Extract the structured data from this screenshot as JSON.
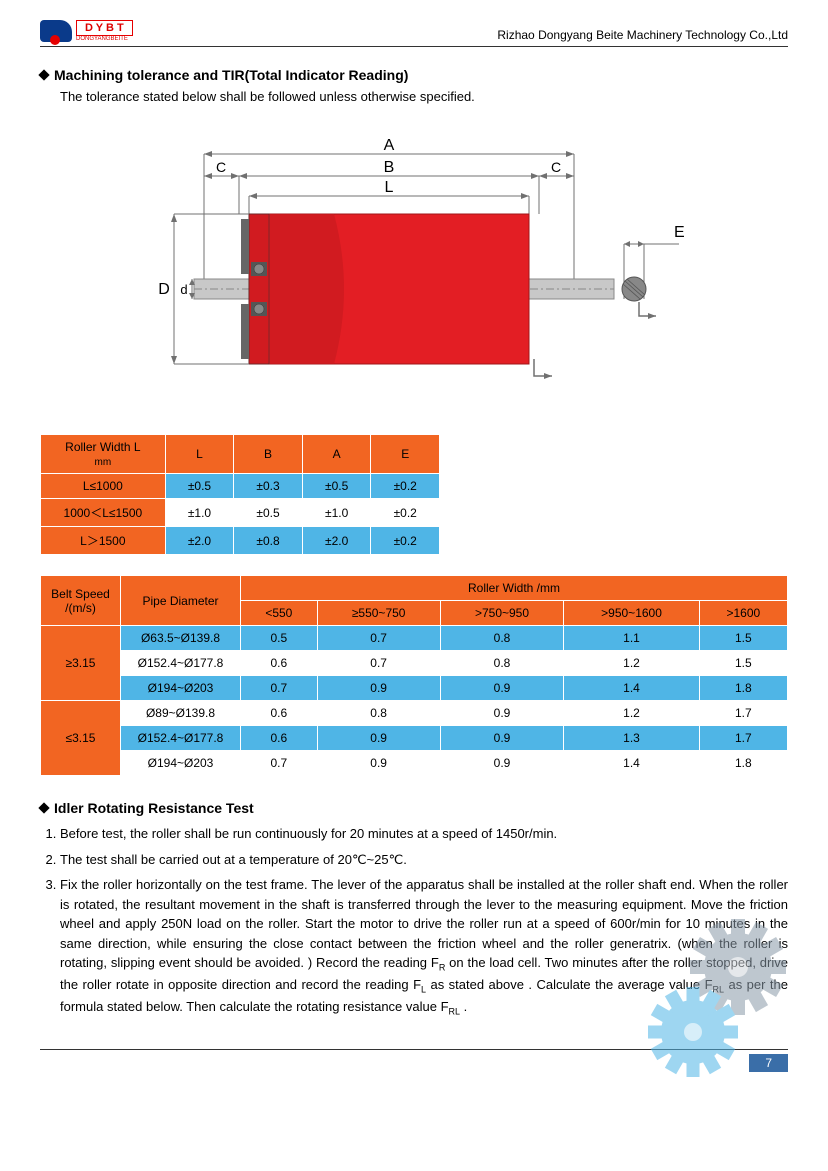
{
  "header": {
    "logo_text": "D Y B T",
    "logo_sub": "DONGYANGBEITE",
    "company": "Rizhao Dongyang Beite Machinery Technology Co.,Ltd"
  },
  "section1": {
    "title": "Machining tolerance and TIR(Total Indicator Reading)",
    "intro": "The tolerance stated below shall be followed unless otherwise specified."
  },
  "diagram": {
    "labels": {
      "A": "A",
      "B": "B",
      "C1": "C",
      "C2": "C",
      "L": "L",
      "D": "D",
      "d": "d",
      "E": "E"
    },
    "colors": {
      "roller": "#e31e24",
      "roller_dark": "#b0181c",
      "shaft": "#b8b8b8",
      "dim_line": "#707070",
      "hatch": "#888888"
    }
  },
  "table1": {
    "header": {
      "col0": "Roller Width    L",
      "unit": "mm",
      "cols": [
        "L",
        "B",
        "A",
        "E"
      ]
    },
    "rows": [
      {
        "label": "L≤1000",
        "vals": [
          "±0.5",
          "±0.3",
          "±0.5",
          "±0.2"
        ],
        "cls": "blue"
      },
      {
        "label": "1000＜L≤1500",
        "vals": [
          "±1.0",
          "±0.5",
          "±1.0",
          "±0.2"
        ],
        "cls": "white"
      },
      {
        "label": "L＞1500",
        "vals": [
          "±2.0",
          "±0.8",
          "±2.0",
          "±0.2"
        ],
        "cls": "blue"
      }
    ]
  },
  "table2": {
    "header": {
      "belt": "Belt Speed",
      "belt_unit": "/(m/s)",
      "pipe": "Pipe Diameter",
      "rw": "Roller Width /mm",
      "cols": [
        "<550",
        "≥550~750",
        ">750~950",
        ">950~1600",
        ">1600"
      ]
    },
    "groups": [
      {
        "belt": "≥3.15",
        "rows": [
          {
            "pipe": "Ø63.5~Ø139.8",
            "vals": [
              "0.5",
              "0.7",
              "0.8",
              "1.1",
              "1.5"
            ],
            "cls": "blue"
          },
          {
            "pipe": "Ø152.4~Ø177.8",
            "vals": [
              "0.6",
              "0.7",
              "0.8",
              "1.2",
              "1.5"
            ],
            "cls": "white"
          },
          {
            "pipe": "Ø194~Ø203",
            "vals": [
              "0.7",
              "0.9",
              "0.9",
              "1.4",
              "1.8"
            ],
            "cls": "blue"
          }
        ]
      },
      {
        "belt": "≤3.15",
        "rows": [
          {
            "pipe": "Ø89~Ø139.8",
            "vals": [
              "0.6",
              "0.8",
              "0.9",
              "1.2",
              "1.7"
            ],
            "cls": "white"
          },
          {
            "pipe": "Ø152.4~Ø177.8",
            "vals": [
              "0.6",
              "0.9",
              "0.9",
              "1.3",
              "1.7"
            ],
            "cls": "blue"
          },
          {
            "pipe": "Ø194~Ø203",
            "vals": [
              "0.7",
              "0.9",
              "0.9",
              "1.4",
              "1.8"
            ],
            "cls": "white"
          }
        ]
      }
    ]
  },
  "section2": {
    "title": "Idler Rotating Resistance Test",
    "items": [
      "Before test, the roller shall be run continuously for 20 minutes at a speed of 1450r/min.",
      "The test shall be carried out at a temperature of 20℃~25℃.",
      "Fix the roller horizontally on the test frame. The lever of the apparatus shall be installed at the roller shaft end. When the roller is rotated, the resultant movement in the shaft is transferred through the lever to the measuring equipment. Move the friction wheel and apply 250N load on the roller. Start the motor to drive the roller run at a speed of 600r/min for 10 minutes in the same direction, while ensuring the close contact between the friction wheel and the roller generatrix. (when the roller is rotating, slipping event should be avoided. ) Record the reading F<sub>R</sub> on the load cell. Two minutes after the roller stopped, drive the roller rotate in opposite direction and record the reading F<sub>L</sub> as stated above . Calculate the average value F<sub>RL</sub> as per the formula stated below. Then calculate the rotating resistance value F<sub>RL</sub> ."
    ]
  },
  "gears": {
    "colors": {
      "gear1": "#8a9aa8",
      "gear2": "#4fb5e6"
    }
  },
  "page": "7"
}
